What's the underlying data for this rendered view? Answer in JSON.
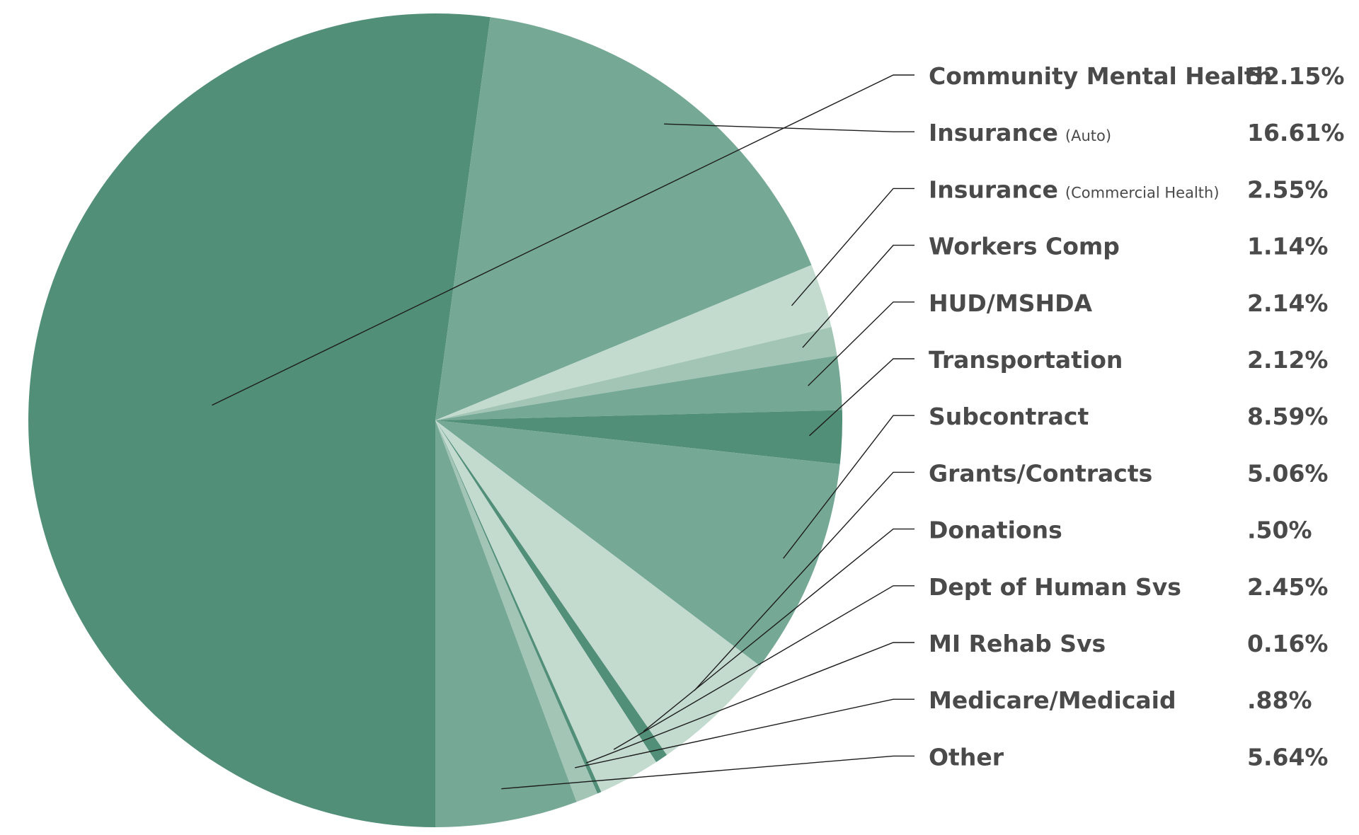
{
  "chart_data": {
    "type": "pie",
    "title": "",
    "legend": "right",
    "slices": [
      {
        "label": "Community Mental Health",
        "qualifier": "",
        "value": 52.15,
        "value_text": "52.15%",
        "color": "#528f79"
      },
      {
        "label": "Insurance",
        "qualifier": "(Auto)",
        "value": 16.61,
        "value_text": "16.61%",
        "color": "#76a896"
      },
      {
        "label": "Insurance",
        "qualifier": "(Commercial Health)",
        "value": 2.55,
        "value_text": "2.55%",
        "color": "#c3dbcf"
      },
      {
        "label": "Workers Comp",
        "qualifier": "",
        "value": 1.14,
        "value_text": "1.14%",
        "color": "#a2c5b6"
      },
      {
        "label": "HUD/MSHDA",
        "qualifier": "",
        "value": 2.14,
        "value_text": "2.14%",
        "color": "#76a896"
      },
      {
        "label": "Transportation",
        "qualifier": "",
        "value": 2.12,
        "value_text": "2.12%",
        "color": "#528f79"
      },
      {
        "label": "Subcontract",
        "qualifier": "",
        "value": 8.59,
        "value_text": "8.59%",
        "color": "#76a896"
      },
      {
        "label": "Grants/Contracts",
        "qualifier": "",
        "value": 5.06,
        "value_text": "5.06%",
        "color": "#c3dbcf"
      },
      {
        "label": "Donations",
        "qualifier": "",
        "value": 0.5,
        "value_text": ".50%",
        "color": "#528f79"
      },
      {
        "label": "Dept of Human Svs",
        "qualifier": "",
        "value": 2.45,
        "value_text": "2.45%",
        "color": "#c3dbcf"
      },
      {
        "label": "MI Rehab Svs",
        "qualifier": "",
        "value": 0.16,
        "value_text": "0.16%",
        "color": "#528f79"
      },
      {
        "label": "Medicare/Medicaid",
        "qualifier": "",
        "value": 0.88,
        "value_text": ".88%",
        "color": "#a2c5b6"
      },
      {
        "label": "Other",
        "qualifier": "",
        "value": 5.64,
        "value_text": "5.64%",
        "color": "#76a896"
      }
    ]
  }
}
